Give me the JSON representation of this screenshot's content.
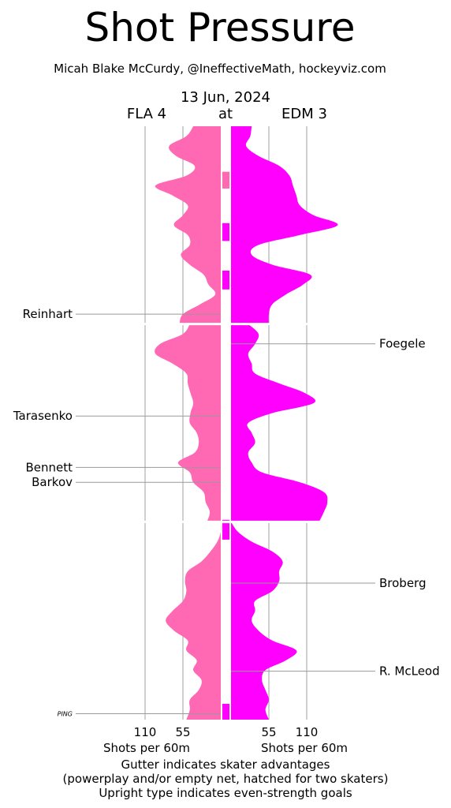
{
  "chart_data": {
    "type": "area",
    "title": "Shot Pressure",
    "subtitle": "Micah Blake McCurdy, @IneffectiveMath, hockeyviz.com",
    "date": "13 Jun, 2024",
    "away_label": "FLA 4",
    "at_label": "at",
    "home_label": "EDM 3",
    "x_ticks_left": [
      "110",
      "55"
    ],
    "x_ticks_right": [
      "55",
      "110"
    ],
    "x_tick_values": [
      110,
      55
    ],
    "xlabel_left": "Shots per 60m",
    "xlabel_right": "Shots per 60m",
    "notes": [
      "Gutter indicates skater advantages",
      "(powerplay and/or empty net, hatched for two skaters)",
      "Upright type indicates even-strength goals"
    ],
    "y_unit": "game minutes",
    "period_breaks": [
      20,
      40
    ],
    "series": [
      {
        "team": "FLA",
        "color": "#ff69b4",
        "points": [
          [
            0,
            40
          ],
          [
            1,
            50
          ],
          [
            2,
            75
          ],
          [
            3,
            65
          ],
          [
            4,
            38
          ],
          [
            5,
            50
          ],
          [
            6,
            95
          ],
          [
            7,
            70
          ],
          [
            8,
            48
          ],
          [
            9,
            55
          ],
          [
            10,
            68
          ],
          [
            11,
            48
          ],
          [
            12,
            45
          ],
          [
            13,
            58
          ],
          [
            14,
            45
          ],
          [
            15,
            25
          ],
          [
            16,
            18
          ],
          [
            17,
            8
          ],
          [
            18,
            30
          ],
          [
            19,
            55
          ],
          [
            20,
            60
          ],
          [
            20,
            45
          ],
          [
            21,
            55
          ],
          [
            22,
            88
          ],
          [
            23,
            95
          ],
          [
            24,
            70
          ],
          [
            25,
            50
          ],
          [
            26,
            48
          ],
          [
            27,
            44
          ],
          [
            28,
            40
          ],
          [
            29,
            44
          ],
          [
            30,
            45
          ],
          [
            31,
            35
          ],
          [
            32,
            32
          ],
          [
            33,
            38
          ],
          [
            34,
            62
          ],
          [
            35,
            45
          ],
          [
            36,
            40
          ],
          [
            37,
            25
          ],
          [
            38,
            22
          ],
          [
            39,
            16
          ],
          [
            40,
            20
          ],
          [
            40,
            0
          ],
          [
            41,
            0
          ],
          [
            42,
            5
          ],
          [
            43,
            15
          ],
          [
            44,
            28
          ],
          [
            45,
            48
          ],
          [
            46,
            52
          ],
          [
            47,
            50
          ],
          [
            48,
            55
          ],
          [
            49,
            70
          ],
          [
            50,
            80
          ],
          [
            51,
            68
          ],
          [
            52,
            48
          ],
          [
            53,
            50
          ],
          [
            54,
            35
          ],
          [
            55,
            40
          ],
          [
            56,
            28
          ],
          [
            57,
            32
          ],
          [
            58,
            45
          ],
          [
            59,
            45
          ],
          [
            60,
            50
          ]
        ]
      },
      {
        "team": "EDM",
        "color": "#ff00ff",
        "points": [
          [
            0,
            30
          ],
          [
            1,
            28
          ],
          [
            2,
            22
          ],
          [
            3,
            40
          ],
          [
            4,
            70
          ],
          [
            5,
            85
          ],
          [
            6,
            90
          ],
          [
            7,
            95
          ],
          [
            8,
            100
          ],
          [
            9,
            120
          ],
          [
            10,
            155
          ],
          [
            11,
            100
          ],
          [
            12,
            40
          ],
          [
            13,
            30
          ],
          [
            14,
            60
          ],
          [
            15,
            115
          ],
          [
            16,
            105
          ],
          [
            17,
            80
          ],
          [
            18,
            60
          ],
          [
            19,
            55
          ],
          [
            20,
            55
          ],
          [
            20,
            25
          ],
          [
            21,
            40
          ],
          [
            22,
            35
          ],
          [
            23,
            25
          ],
          [
            24,
            30
          ],
          [
            25,
            35
          ],
          [
            26,
            70
          ],
          [
            27,
            108
          ],
          [
            28,
            120
          ],
          [
            29,
            60
          ],
          [
            30,
            25
          ],
          [
            31,
            30
          ],
          [
            32,
            35
          ],
          [
            33,
            25
          ],
          [
            34,
            30
          ],
          [
            35,
            45
          ],
          [
            36,
            100
          ],
          [
            37,
            135
          ],
          [
            38,
            140
          ],
          [
            39,
            135
          ],
          [
            40,
            128
          ],
          [
            40,
            0
          ],
          [
            41,
            10
          ],
          [
            42,
            30
          ],
          [
            43,
            60
          ],
          [
            44,
            75
          ],
          [
            45,
            70
          ],
          [
            46,
            70
          ],
          [
            47,
            60
          ],
          [
            48,
            35
          ],
          [
            49,
            35
          ],
          [
            50,
            30
          ],
          [
            51,
            40
          ],
          [
            52,
            60
          ],
          [
            53,
            95
          ],
          [
            54,
            80
          ],
          [
            55,
            50
          ],
          [
            56,
            45
          ],
          [
            57,
            50
          ],
          [
            58,
            55
          ],
          [
            59,
            50
          ],
          [
            60,
            55
          ]
        ]
      }
    ],
    "gutter_segments": [
      {
        "team": "FLA",
        "start": 4.6,
        "end": 6.3
      },
      {
        "team": "EDM",
        "start": 9.8,
        "end": 11.6
      },
      {
        "team": "EDM",
        "start": 14.6,
        "end": 16.5
      },
      {
        "team": "EDM",
        "start": 39.8,
        "end": 40.2
      },
      {
        "team": "EDM",
        "start": 40.2,
        "end": 41.8
      },
      {
        "team": "EDM",
        "start": 58.4,
        "end": 60
      }
    ],
    "scorers": [
      {
        "name": "Reinhart",
        "team": "FLA",
        "minute": 19.0
      },
      {
        "name": "Foegele",
        "team": "EDM",
        "minute": 22.0
      },
      {
        "name": "Tarasenko",
        "team": "FLA",
        "minute": 29.3
      },
      {
        "name": "Bennett",
        "team": "FLA",
        "minute": 34.5
      },
      {
        "name": "Barkov",
        "team": "FLA",
        "minute": 36.0
      },
      {
        "name": "Broberg",
        "team": "EDM",
        "minute": 46.2
      },
      {
        "name": "R. McLeod",
        "team": "EDM",
        "minute": 55.1
      },
      {
        "name": "PING",
        "team": "FLA",
        "minute": 59.4,
        "italic": true
      }
    ]
  }
}
